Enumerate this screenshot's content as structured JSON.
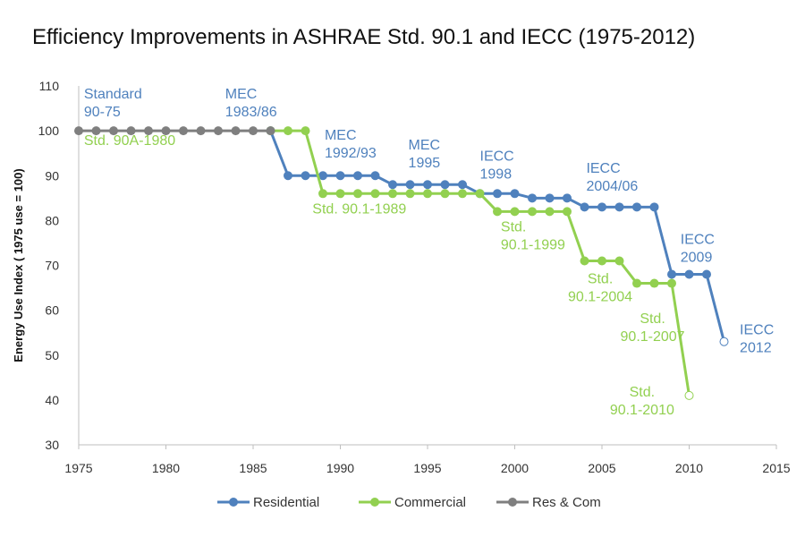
{
  "chart_data": {
    "type": "line",
    "title": "Efficiency Improvements in ASHRAE Std. 90.1 and IECC (1975-2012)",
    "xlabel": "",
    "ylabel": "Energy Use Index ( 1975 use = 100)",
    "xlim": [
      1975,
      2015
    ],
    "ylim": [
      30,
      110
    ],
    "xticks": [
      1975,
      1980,
      1985,
      1990,
      1995,
      2000,
      2005,
      2010,
      2015
    ],
    "yticks": [
      30,
      40,
      50,
      60,
      70,
      80,
      90,
      100,
      110
    ],
    "grid": false,
    "legend_position": "bottom",
    "colors": {
      "residential": "#4F81BD",
      "commercial": "#92D050",
      "rescom": "#7F7F7F"
    },
    "series": [
      {
        "name": "Residential",
        "color": "#4F81BD",
        "x": [
          1986,
          1987,
          1988,
          1989,
          1990,
          1991,
          1992,
          1993,
          1994,
          1995,
          1996,
          1997,
          1998,
          1999,
          2000,
          2001,
          2002,
          2003,
          2004,
          2005,
          2006,
          2007,
          2008,
          2009,
          2010,
          2011,
          2012
        ],
        "y": [
          100,
          90,
          90,
          90,
          90,
          90,
          90,
          88,
          88,
          88,
          88,
          88,
          86,
          86,
          86,
          85,
          85,
          85,
          83,
          83,
          83,
          83,
          83,
          68,
          68,
          68,
          53
        ],
        "last_point_open": true
      },
      {
        "name": "Commercial",
        "color": "#92D050",
        "x": [
          1986,
          1987,
          1988,
          1989,
          1990,
          1991,
          1992,
          1993,
          1994,
          1995,
          1996,
          1997,
          1998,
          1999,
          2000,
          2001,
          2002,
          2003,
          2004,
          2005,
          2006,
          2007,
          2008,
          2009,
          2010
        ],
        "y": [
          100,
          100,
          100,
          86,
          86,
          86,
          86,
          86,
          86,
          86,
          86,
          86,
          86,
          82,
          82,
          82,
          82,
          82,
          71,
          71,
          71,
          66,
          66,
          66,
          41
        ],
        "last_point_open": true
      },
      {
        "name": "Res & Com",
        "color": "#7F7F7F",
        "x": [
          1975,
          1976,
          1977,
          1978,
          1979,
          1980,
          1981,
          1982,
          1983,
          1984,
          1985,
          1986
        ],
        "y": [
          100,
          100,
          100,
          100,
          100,
          100,
          100,
          100,
          100,
          100,
          100,
          100
        ],
        "last_point_open": false
      }
    ],
    "annotations": [
      {
        "lines": [
          "Standard",
          "90-75"
        ],
        "x": 1975.3,
        "y": 107.2,
        "series": "residential",
        "anchor": "start"
      },
      {
        "lines": [
          "Std.  90A-1980"
        ],
        "x": 1975.3,
        "y": 96.8,
        "series": "commercial",
        "anchor": "start"
      },
      {
        "lines": [
          "MEC",
          "1983/86"
        ],
        "x": 1983.4,
        "y": 107.2,
        "series": "residential",
        "anchor": "start"
      },
      {
        "lines": [
          "MEC",
          "1992/93"
        ],
        "x": 1989.1,
        "y": 98.0,
        "series": "residential",
        "anchor": "start"
      },
      {
        "lines": [
          "Std. 90.1-1989"
        ],
        "x": 1988.4,
        "y": 81.6,
        "series": "commercial",
        "anchor": "start"
      },
      {
        "lines": [
          "MEC",
          "1995"
        ],
        "x": 1993.9,
        "y": 95.8,
        "series": "residential",
        "anchor": "start"
      },
      {
        "lines": [
          "IECC",
          "1998"
        ],
        "x": 1998.0,
        "y": 93.3,
        "series": "residential",
        "anchor": "start"
      },
      {
        "lines": [
          "Std.",
          "90.1-1999"
        ],
        "x": 1999.2,
        "y": 77.6,
        "series": "commercial",
        "anchor": "start"
      },
      {
        "lines": [
          "IECC",
          "2004/06"
        ],
        "x": 2004.1,
        "y": 90.6,
        "series": "residential",
        "anchor": "start"
      },
      {
        "lines": [
          "Std.",
          "90.1-2004"
        ],
        "x": 2004.9,
        "y": 66.0,
        "series": "commercial",
        "anchor": "middle"
      },
      {
        "lines": [
          "IECC",
          "2009"
        ],
        "x": 2009.5,
        "y": 74.8,
        "series": "residential",
        "anchor": "start"
      },
      {
        "lines": [
          "Std.",
          "90.1-2007"
        ],
        "x": 2007.9,
        "y": 57.1,
        "series": "commercial",
        "anchor": "middle"
      },
      {
        "lines": [
          "IECC",
          "2012"
        ],
        "x": 2012.9,
        "y": 54.6,
        "series": "residential",
        "anchor": "start"
      },
      {
        "lines": [
          "Std.",
          "90.1-2010"
        ],
        "x": 2007.3,
        "y": 40.8,
        "series": "commercial",
        "anchor": "middle"
      }
    ]
  }
}
